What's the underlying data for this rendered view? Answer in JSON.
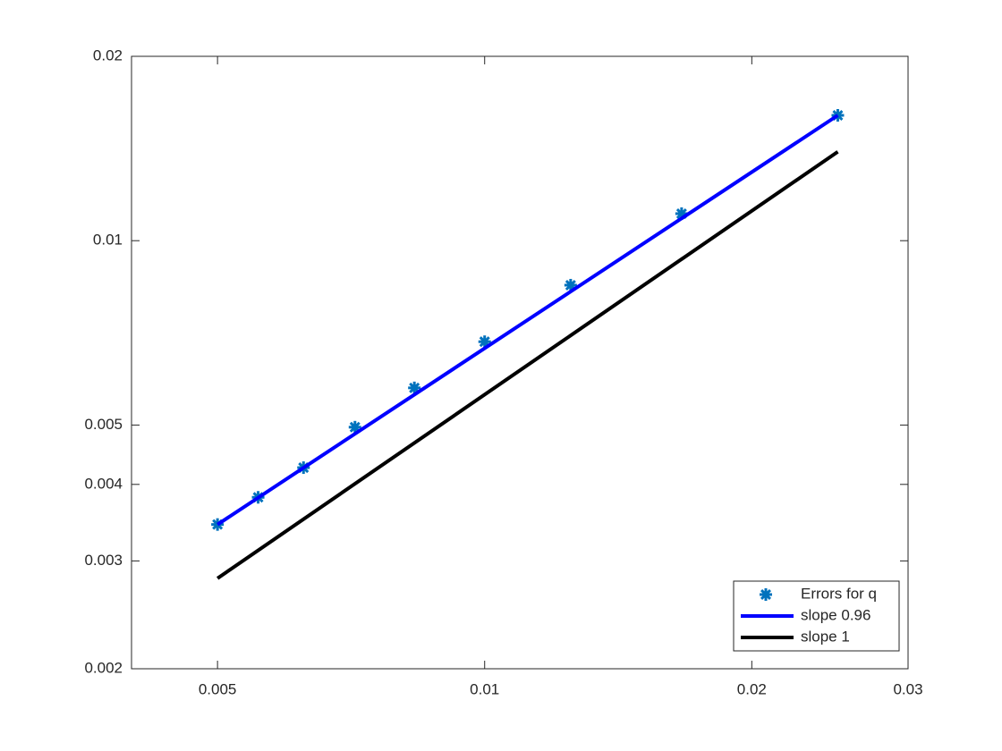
{
  "chart_data": {
    "type": "line",
    "xscale": "log",
    "yscale": "log",
    "xlim": [
      0.004,
      0.03
    ],
    "ylim": [
      0.002,
      0.02
    ],
    "xticks": [
      0.005,
      0.01,
      0.02,
      0.03
    ],
    "yticks": [
      0.002,
      0.003,
      0.004,
      0.005,
      0.01,
      0.02
    ],
    "legend": "southeast",
    "series": [
      {
        "name": "Errors for q",
        "style": "marker",
        "color": "#0072bd",
        "x": [
          0.005,
          0.005556,
          0.00625,
          0.007143,
          0.008333,
          0.01,
          0.0125,
          0.01667,
          0.025
        ],
        "values": [
          0.00344,
          0.00381,
          0.00426,
          0.00496,
          0.00575,
          0.00684,
          0.00846,
          0.01107,
          0.01602
        ]
      },
      {
        "name": "slope 0.96",
        "style": "line",
        "color": "#0000ff",
        "x": [
          0.005,
          0.025
        ],
        "values": [
          0.00344,
          0.01602
        ]
      },
      {
        "name": "slope 1",
        "style": "line",
        "color": "#000000",
        "x": [
          0.005,
          0.025
        ],
        "values": [
          0.00281,
          0.01397
        ]
      }
    ]
  }
}
